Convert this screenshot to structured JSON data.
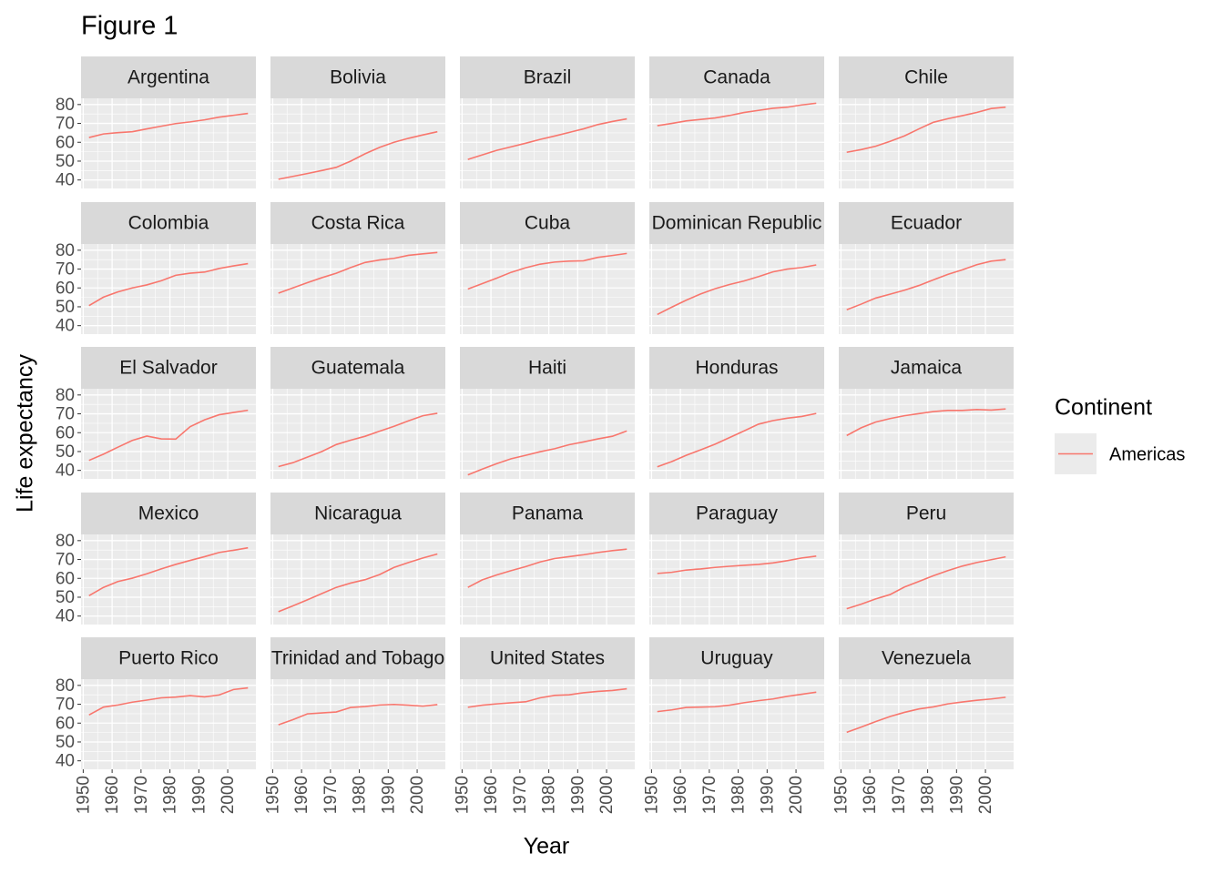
{
  "chart_data": {
    "type": "line",
    "title": "Figure 1",
    "x_label": "Year",
    "y_label": "Life expectancy",
    "x": [
      1952,
      1957,
      1962,
      1967,
      1972,
      1977,
      1982,
      1987,
      1992,
      1997,
      2002,
      2007
    ],
    "xlim": [
      1949.25,
      2009.75
    ],
    "xticks": [
      1950,
      1960,
      1970,
      1980,
      1990,
      2000
    ],
    "ylim": [
      35.5,
      83.3
    ],
    "yticks": [
      40,
      50,
      60,
      70,
      80
    ],
    "grid": true,
    "color": "#F8766D",
    "legend": {
      "title": "Continent",
      "labels": [
        "Americas"
      ],
      "position": "right"
    },
    "series": [
      {
        "name": "Argentina",
        "values": [
          62.5,
          64.4,
          65.1,
          65.6,
          67.1,
          68.5,
          69.9,
          70.8,
          71.9,
          73.3,
          74.3,
          75.3
        ]
      },
      {
        "name": "Bolivia",
        "values": [
          40.4,
          41.9,
          43.4,
          45.0,
          46.7,
          50.0,
          53.9,
          57.3,
          60.0,
          62.1,
          63.9,
          65.6
        ]
      },
      {
        "name": "Brazil",
        "values": [
          50.9,
          53.3,
          55.7,
          57.6,
          59.5,
          61.5,
          63.3,
          65.2,
          67.1,
          69.4,
          71.0,
          72.4
        ]
      },
      {
        "name": "Canada",
        "values": [
          68.8,
          70.0,
          71.3,
          72.1,
          72.9,
          74.2,
          75.8,
          76.9,
          78.0,
          78.6,
          79.8,
          80.7
        ]
      },
      {
        "name": "Chile",
        "values": [
          54.7,
          56.1,
          57.9,
          60.5,
          63.4,
          67.1,
          70.6,
          72.5,
          74.1,
          75.8,
          77.9,
          78.6
        ]
      },
      {
        "name": "Colombia",
        "values": [
          50.6,
          55.1,
          57.9,
          60.0,
          61.6,
          63.8,
          66.7,
          67.8,
          68.4,
          70.3,
          71.7,
          72.9
        ]
      },
      {
        "name": "Costa Rica",
        "values": [
          57.2,
          60.0,
          62.8,
          65.4,
          67.8,
          70.8,
          73.5,
          74.8,
          75.7,
          77.3,
          78.1,
          78.8
        ]
      },
      {
        "name": "Cuba",
        "values": [
          59.4,
          62.3,
          65.2,
          68.3,
          70.7,
          72.6,
          73.7,
          74.2,
          74.4,
          76.2,
          77.2,
          78.3
        ]
      },
      {
        "name": "Dominican Republic",
        "values": [
          45.9,
          49.8,
          53.5,
          56.8,
          59.6,
          61.8,
          63.7,
          66.0,
          68.5,
          70.0,
          70.8,
          72.2
        ]
      },
      {
        "name": "Ecuador",
        "values": [
          48.4,
          51.4,
          54.6,
          56.7,
          58.8,
          61.3,
          64.3,
          67.2,
          69.6,
          72.3,
          74.2,
          75.0
        ]
      },
      {
        "name": "El Salvador",
        "values": [
          45.3,
          48.6,
          52.3,
          55.9,
          58.2,
          56.7,
          56.6,
          63.2,
          66.8,
          69.5,
          70.7,
          71.9
        ]
      },
      {
        "name": "Guatemala",
        "values": [
          42.0,
          44.1,
          47.0,
          50.0,
          53.7,
          56.0,
          58.1,
          60.8,
          63.4,
          66.3,
          69.0,
          70.3
        ]
      },
      {
        "name": "Haiti",
        "values": [
          37.6,
          40.7,
          43.6,
          46.2,
          48.0,
          49.9,
          51.5,
          53.6,
          55.1,
          56.7,
          58.1,
          60.9
        ]
      },
      {
        "name": "Honduras",
        "values": [
          41.9,
          44.7,
          48.0,
          50.9,
          53.9,
          57.4,
          60.9,
          64.5,
          66.4,
          67.7,
          68.6,
          70.2
        ]
      },
      {
        "name": "Jamaica",
        "values": [
          58.5,
          62.6,
          65.6,
          67.5,
          69.0,
          70.1,
          71.2,
          71.8,
          71.8,
          72.3,
          72.0,
          72.6
        ]
      },
      {
        "name": "Mexico",
        "values": [
          50.8,
          55.2,
          58.3,
          60.1,
          62.4,
          65.0,
          67.4,
          69.5,
          71.5,
          73.7,
          74.9,
          76.2
        ]
      },
      {
        "name": "Nicaragua",
        "values": [
          42.3,
          45.4,
          48.6,
          51.9,
          55.2,
          57.5,
          59.3,
          62.0,
          65.8,
          68.4,
          70.8,
          72.9
        ]
      },
      {
        "name": "Panama",
        "values": [
          55.2,
          59.2,
          61.8,
          64.1,
          66.2,
          68.7,
          70.5,
          71.5,
          72.5,
          73.7,
          74.7,
          75.5
        ]
      },
      {
        "name": "Paraguay",
        "values": [
          62.6,
          63.2,
          64.4,
          65.0,
          65.8,
          66.4,
          66.9,
          67.4,
          68.2,
          69.4,
          70.8,
          71.8
        ]
      },
      {
        "name": "Peru",
        "values": [
          43.9,
          46.3,
          49.1,
          51.4,
          55.4,
          58.4,
          61.4,
          64.1,
          66.5,
          68.4,
          69.9,
          71.4
        ]
      },
      {
        "name": "Puerto Rico",
        "values": [
          64.3,
          68.5,
          69.6,
          71.1,
          72.2,
          73.4,
          73.8,
          74.6,
          73.9,
          74.9,
          77.8,
          78.7
        ]
      },
      {
        "name": "Trinidad and Tobago",
        "values": [
          59.1,
          61.8,
          64.9,
          65.4,
          65.9,
          68.3,
          68.8,
          69.6,
          69.9,
          69.5,
          69.0,
          69.8
        ]
      },
      {
        "name": "United States",
        "values": [
          68.4,
          69.5,
          70.2,
          70.8,
          71.3,
          73.4,
          74.7,
          75.0,
          76.1,
          76.8,
          77.3,
          78.2
        ]
      },
      {
        "name": "Uruguay",
        "values": [
          66.1,
          67.0,
          68.3,
          68.5,
          68.7,
          69.5,
          70.8,
          71.9,
          72.8,
          74.2,
          75.3,
          76.4
        ]
      },
      {
        "name": "Venezuela",
        "values": [
          55.1,
          57.9,
          60.8,
          63.5,
          65.7,
          67.5,
          68.6,
          70.2,
          71.2,
          72.1,
          72.8,
          73.7
        ]
      }
    ]
  }
}
